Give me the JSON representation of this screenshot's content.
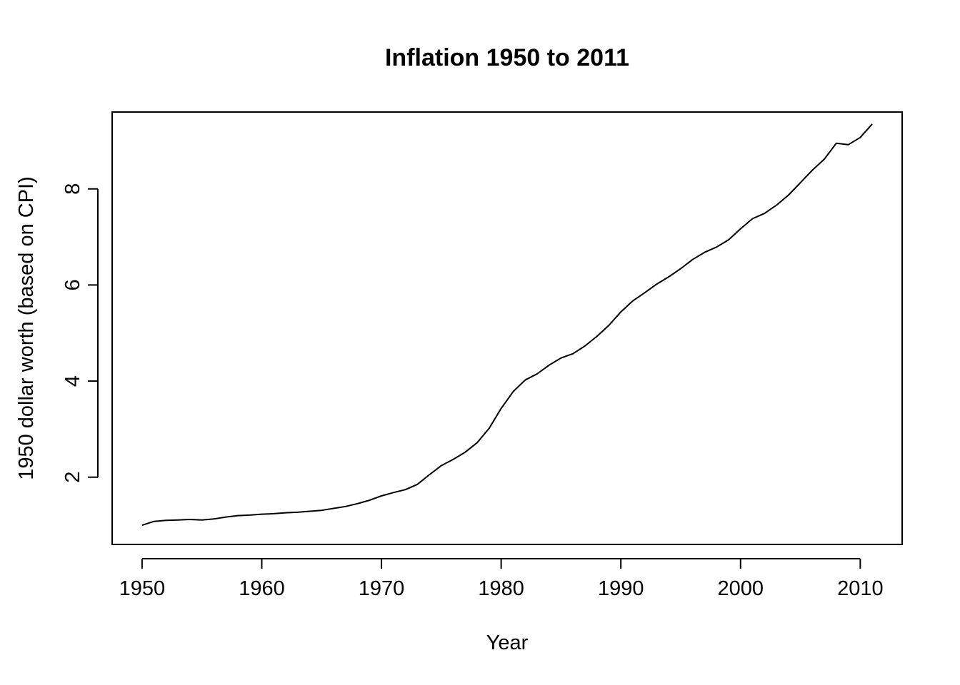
{
  "chart_data": {
    "type": "line",
    "title": "Inflation 1950 to 2011",
    "xlabel": "Year",
    "ylabel": "1950 dollar worth (based on CPI)",
    "xlim": [
      1947.5,
      2013.5
    ],
    "ylim": [
      0.6,
      9.6
    ],
    "x_ticks": [
      1950,
      1960,
      1970,
      1980,
      1990,
      2000,
      2010
    ],
    "y_ticks": [
      2,
      4,
      6,
      8
    ],
    "grid": false,
    "legend": "none",
    "line_color": "#000000",
    "series": [
      {
        "x": [
          1950,
          1951,
          1952,
          1953,
          1954,
          1955,
          1956,
          1957,
          1958,
          1959,
          1960,
          1961,
          1962,
          1963,
          1964,
          1965,
          1966,
          1967,
          1968,
          1969,
          1970,
          1971,
          1972,
          1973,
          1974,
          1975,
          1976,
          1977,
          1978,
          1979,
          1980,
          1981,
          1982,
          1983,
          1984,
          1985,
          1986,
          1987,
          1988,
          1989,
          1990,
          1991,
          1992,
          1993,
          1994,
          1995,
          1996,
          1997,
          1998,
          1999,
          2000,
          2001,
          2002,
          2003,
          2004,
          2005,
          2006,
          2007,
          2008,
          2009,
          2010,
          2011
        ],
        "values": [
          1.0,
          1.08,
          1.1,
          1.11,
          1.12,
          1.11,
          1.13,
          1.17,
          1.2,
          1.21,
          1.23,
          1.24,
          1.26,
          1.27,
          1.29,
          1.31,
          1.35,
          1.39,
          1.45,
          1.52,
          1.61,
          1.68,
          1.74,
          1.85,
          2.05,
          2.24,
          2.37,
          2.52,
          2.72,
          3.02,
          3.43,
          3.78,
          4.02,
          4.15,
          4.33,
          4.48,
          4.57,
          4.73,
          4.93,
          5.16,
          5.44,
          5.67,
          5.84,
          6.02,
          6.17,
          6.34,
          6.53,
          6.68,
          6.79,
          6.94,
          7.17,
          7.38,
          7.49,
          7.66,
          7.87,
          8.13,
          8.39,
          8.62,
          8.95,
          8.92,
          9.07,
          9.35
        ]
      }
    ]
  }
}
